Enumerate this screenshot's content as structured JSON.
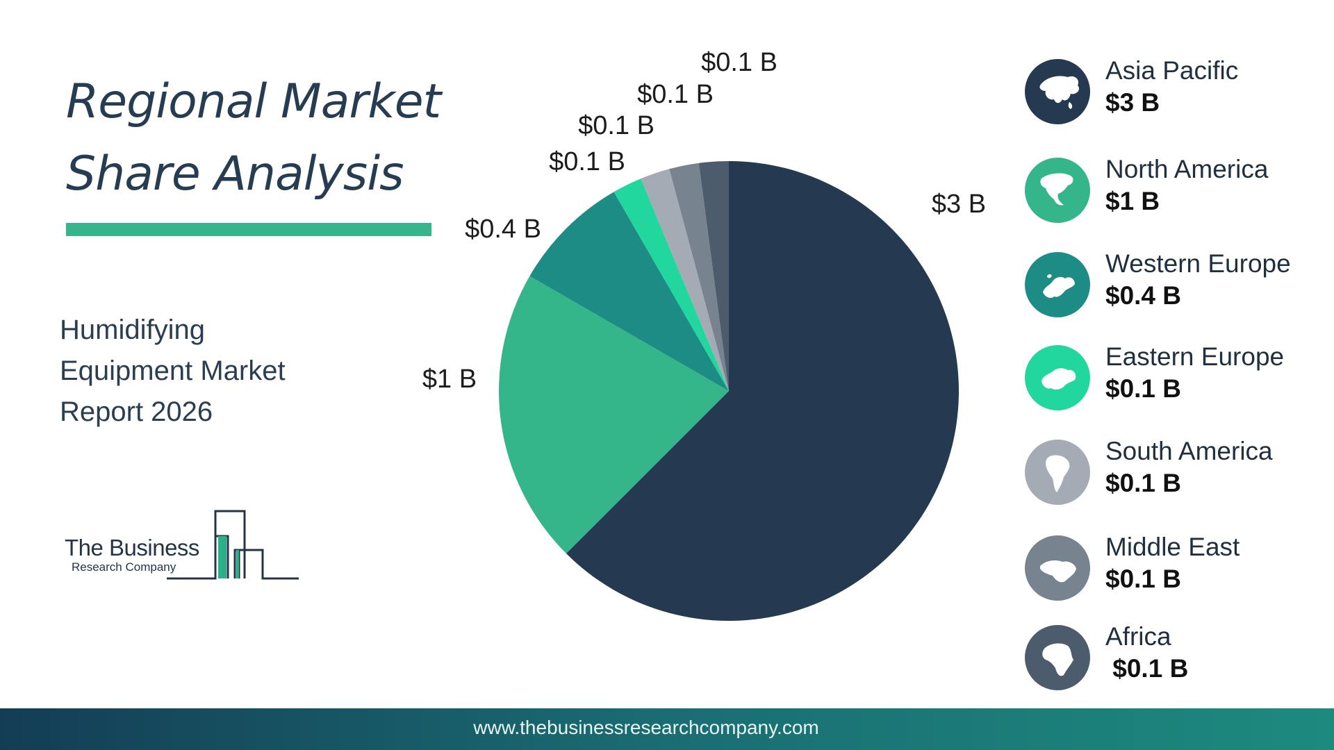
{
  "header": {
    "title_line1": "Regional Market",
    "title_line2": "Share Analysis"
  },
  "subtitle": {
    "line1": "Humidifying",
    "line2": "Equipment Market",
    "line3": "Report 2026"
  },
  "logo": {
    "line1": "The Business",
    "line2": "Research Company"
  },
  "chart_data": {
    "type": "pie",
    "start_angle_deg": 0,
    "direction": "clockwise",
    "slices": [
      {
        "name": "Asia Pacific",
        "value": 3,
        "label": "$3 B",
        "color": "#253a51"
      },
      {
        "name": "North America",
        "value": 1,
        "label": "$1 B",
        "color": "#34b58a"
      },
      {
        "name": "Western Europe",
        "value": 0.4,
        "label": "$0.4 B",
        "color": "#1c8c84"
      },
      {
        "name": "Eastern Europe",
        "value": 0.1,
        "label": "$0.1 B",
        "color": "#21d79d"
      },
      {
        "name": "South America",
        "value": 0.1,
        "label": "$0.1 B",
        "color": "#a5abb4"
      },
      {
        "name": "Middle East",
        "value": 0.1,
        "label": "$0.1 B",
        "color": "#77838f"
      },
      {
        "name": "Africa",
        "value": 0.1,
        "label": "$0.1 B",
        "color": "#4d5c6c"
      }
    ]
  },
  "legend": {
    "items": [
      {
        "name": "Asia Pacific",
        "value": "$3 B",
        "color": "#253a51",
        "icon": "asia-map-icon"
      },
      {
        "name": "North America",
        "value": "$1 B",
        "color": "#34b58a",
        "icon": "north-america-map-icon"
      },
      {
        "name": "Western Europe",
        "value": "$0.4 B",
        "color": "#1c8c84",
        "icon": "western-europe-map-icon"
      },
      {
        "name": "Eastern Europe",
        "value": "$0.1 B",
        "color": "#21d79d",
        "icon": "eastern-europe-map-icon"
      },
      {
        "name": "South America",
        "value": "$0.1 B",
        "color": "#a5abb4",
        "icon": "south-america-map-icon"
      },
      {
        "name": "Middle East",
        "value": "$0.1 B",
        "color": "#77838f",
        "icon": "middle-east-map-icon"
      },
      {
        "name": "Africa",
        "value": " $0.1 B",
        "color": "#4d5c6c",
        "icon": "africa-map-icon"
      }
    ]
  },
  "footer": {
    "url": "www.thebusinessresearchcompany.com"
  }
}
